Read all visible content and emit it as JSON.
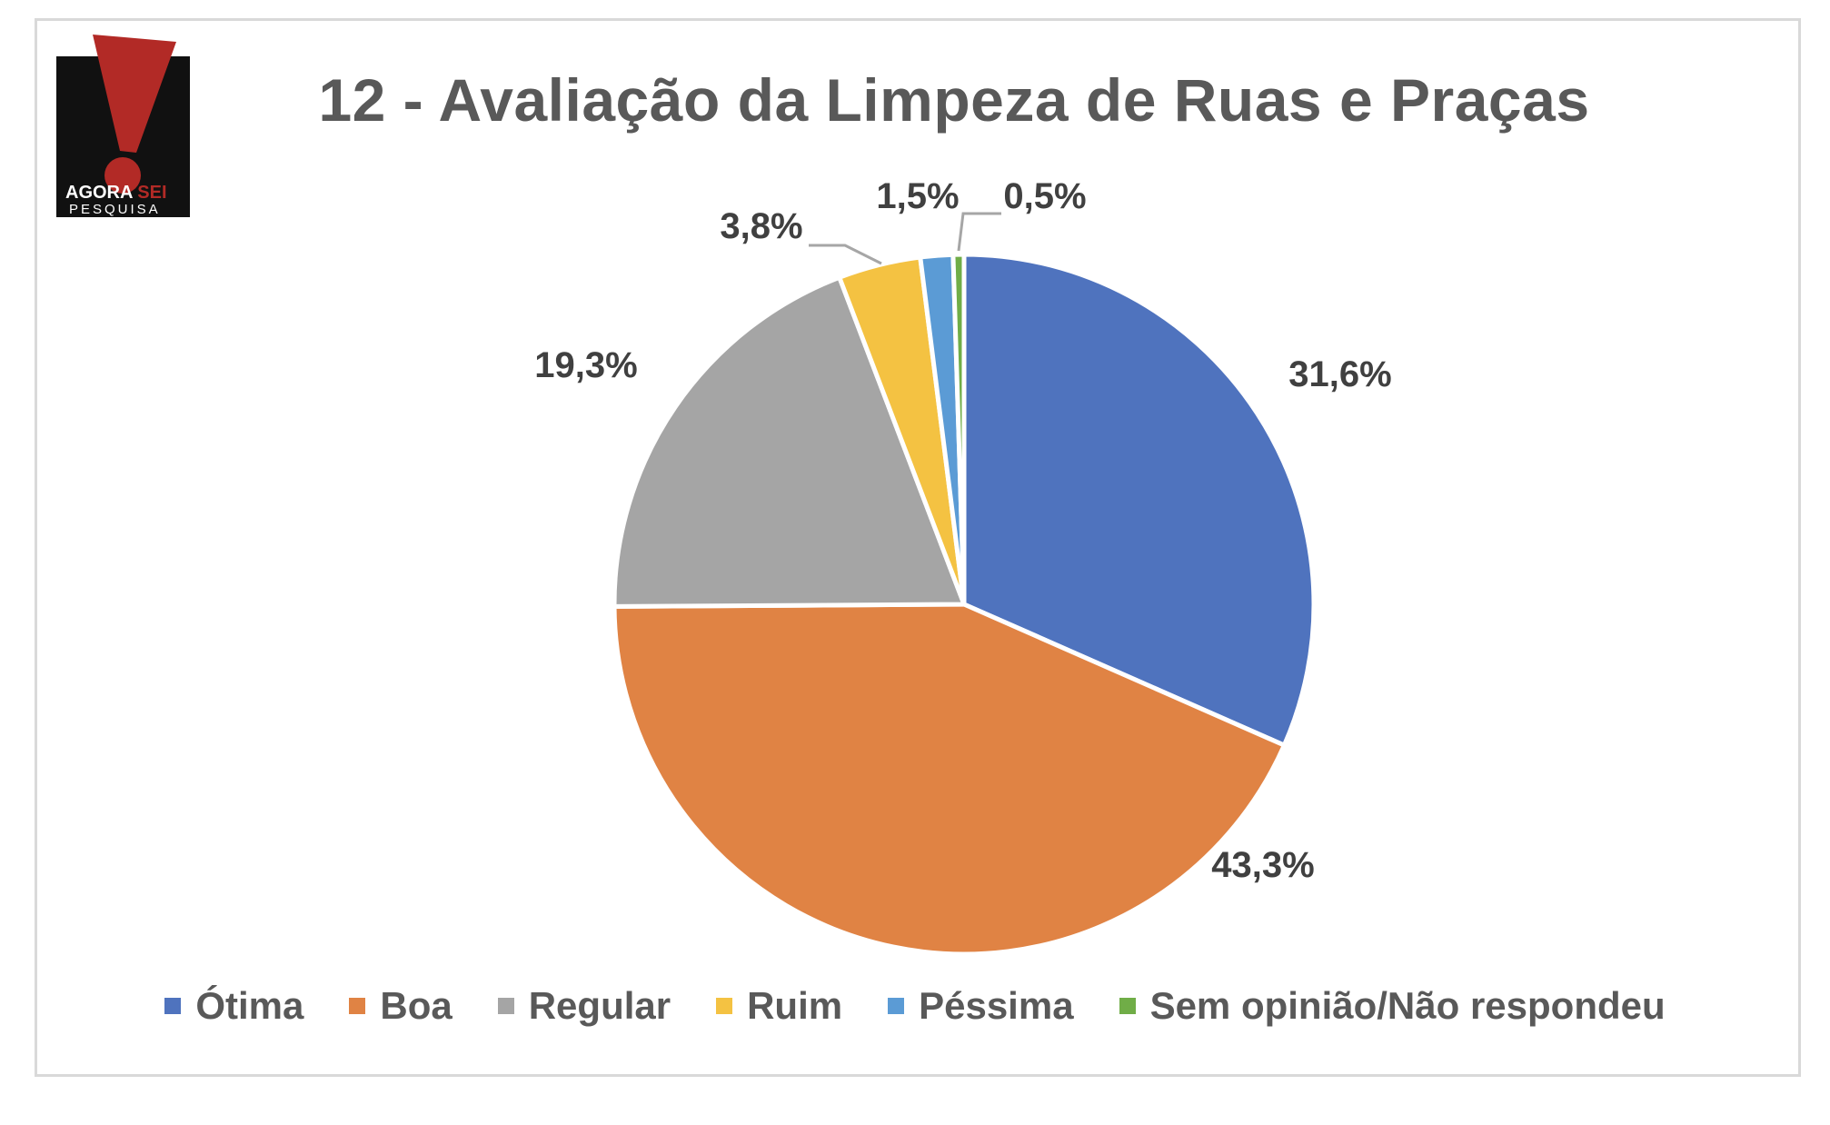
{
  "logo": {
    "line1a": "AGORA",
    "line1b": "SEI",
    "line2": "PESQUISA"
  },
  "chart_data": {
    "type": "pie",
    "title": "12 - Avaliação da Limpeza de Ruas e Praças",
    "legend_position": "bottom",
    "slices": [
      {
        "label": "Ótima",
        "value": 31.6,
        "display": "31,6%",
        "color": "#4f73be"
      },
      {
        "label": "Boa",
        "value": 43.3,
        "display": "43,3%",
        "color": "#e08344"
      },
      {
        "label": "Regular",
        "value": 19.3,
        "display": "19,3%",
        "color": "#a5a5a5"
      },
      {
        "label": "Ruim",
        "value": 3.8,
        "display": "3,8%",
        "color": "#f4c242"
      },
      {
        "label": "Péssima",
        "value": 1.5,
        "display": "1,5%",
        "color": "#5b9bd5"
      },
      {
        "label": "Sem opinião/Não respondeu",
        "value": 0.5,
        "display": "0,5%",
        "color": "#70ad47"
      }
    ]
  }
}
